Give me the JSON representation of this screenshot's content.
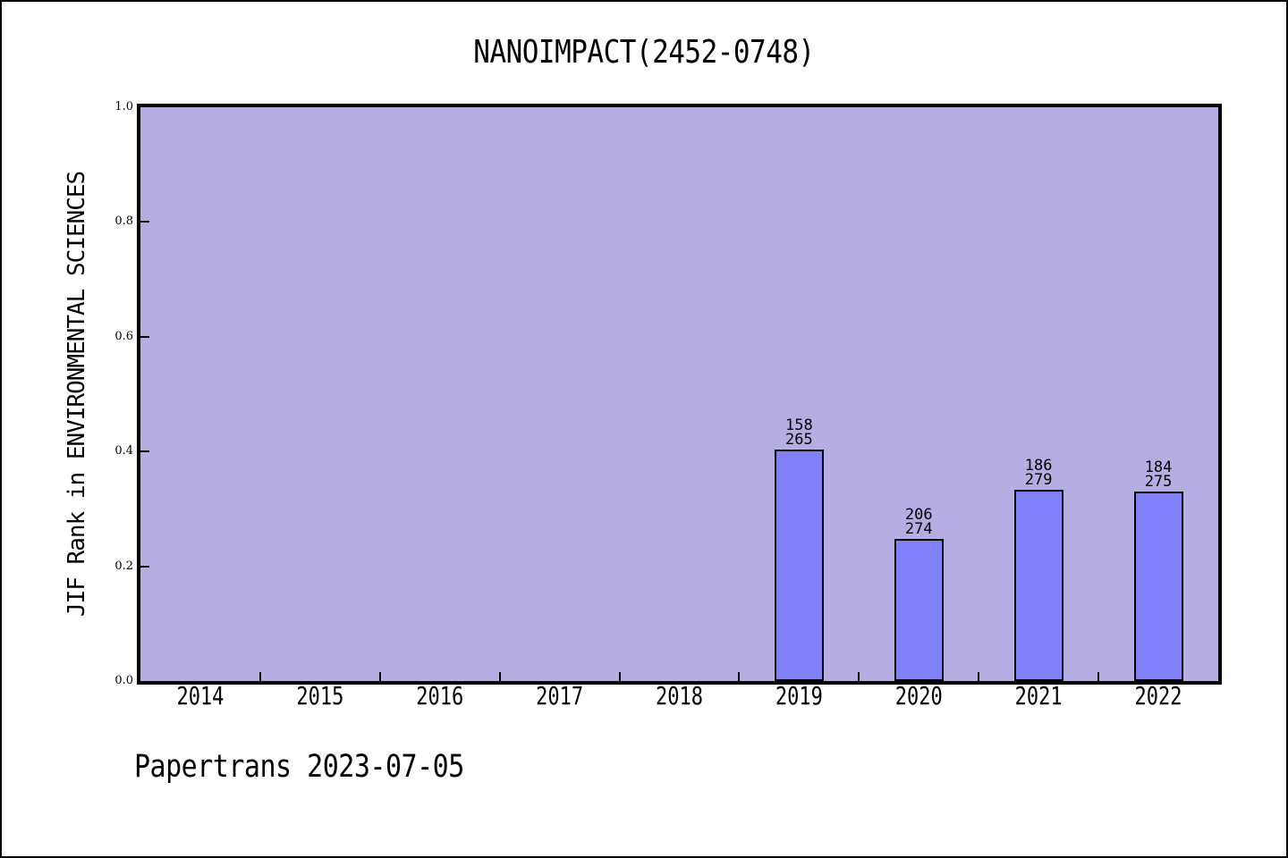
{
  "title": "NANOIMPACT(2452-0748)",
  "footer": "Papertrans 2023-07-05",
  "chart_data": {
    "type": "bar",
    "title": "NANOIMPACT(2452-0748)",
    "ylabel": "JIF Rank in ENVIRONMENTAL SCIENCES",
    "xlabel": "",
    "ylim": [
      0.0,
      1.0
    ],
    "yticks": [
      "0.0",
      "0.2",
      "0.4",
      "0.6",
      "0.8",
      "1.0"
    ],
    "grid": false,
    "legend": "none",
    "categories": [
      "2014",
      "2015",
      "2016",
      "2017",
      "2018",
      "2019",
      "2020",
      "2021",
      "2022"
    ],
    "bars": [
      {
        "category": "2019",
        "rank": 158,
        "total": 265,
        "value": 0.4038
      },
      {
        "category": "2020",
        "rank": 206,
        "total": 274,
        "value": 0.2482
      },
      {
        "category": "2021",
        "rank": 186,
        "total": 279,
        "value": 0.3333
      },
      {
        "category": "2022",
        "rank": 184,
        "total": 275,
        "value": 0.3309
      }
    ],
    "bar_label_format": "rank above total",
    "colors": {
      "plot_bg": "#b5aee3",
      "bar_fill": "#8080f8",
      "bar_border": "#000000",
      "frame": "#000000",
      "text": "#000000",
      "page_bg": "#ffffff"
    }
  }
}
